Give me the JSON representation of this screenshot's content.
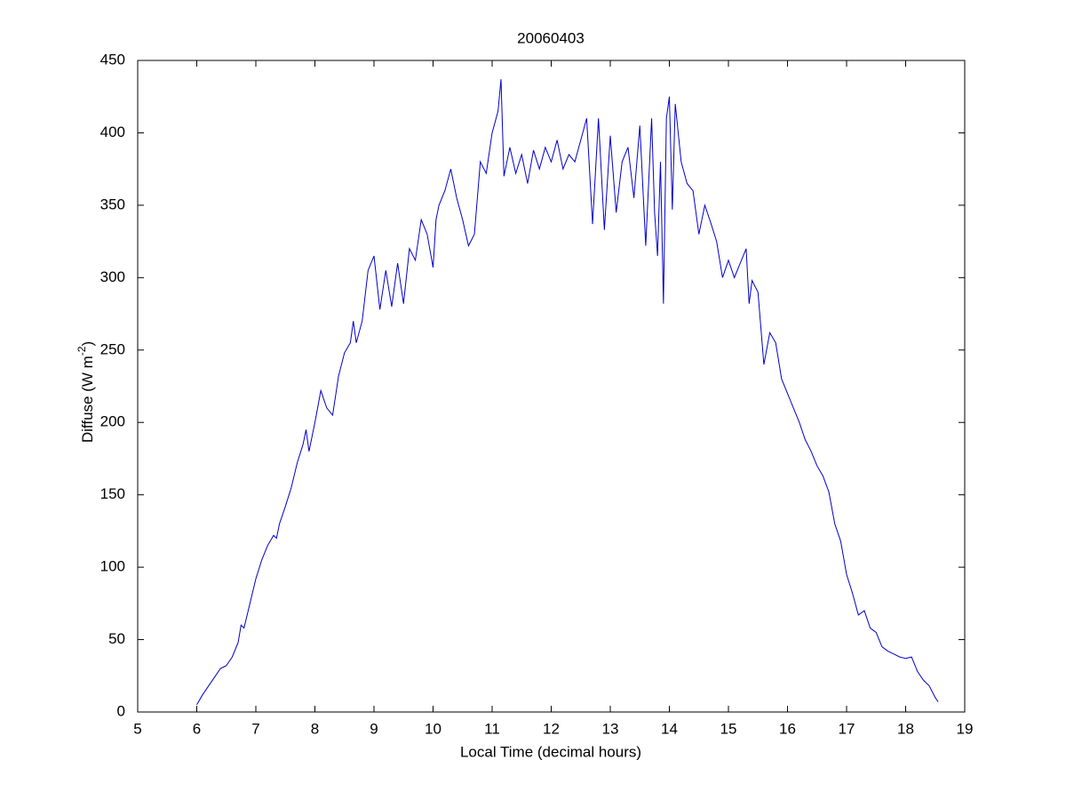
{
  "chart_data": {
    "type": "line",
    "title": "20060403",
    "xlabel": "Local Time (decimal hours)",
    "ylabel": [
      "Diffuse (W m",
      "-2",
      ")"
    ],
    "xlim": [
      5,
      19
    ],
    "xticks": [
      5,
      6,
      7,
      8,
      9,
      10,
      11,
      12,
      13,
      14,
      15,
      16,
      17,
      18,
      19
    ],
    "ylim": [
      0,
      450
    ],
    "yticks": [
      0,
      50,
      100,
      150,
      200,
      250,
      300,
      350,
      400,
      450
    ],
    "box": true,
    "series": [
      {
        "color": "#0000cc",
        "x": [
          6.0,
          6.1,
          6.2,
          6.3,
          6.4,
          6.5,
          6.6,
          6.7,
          6.75,
          6.8,
          6.9,
          7.0,
          7.1,
          7.2,
          7.3,
          7.35,
          7.4,
          7.5,
          7.6,
          7.7,
          7.8,
          7.85,
          7.9,
          8.0,
          8.1,
          8.2,
          8.3,
          8.4,
          8.5,
          8.6,
          8.65,
          8.7,
          8.8,
          8.9,
          9.0,
          9.1,
          9.2,
          9.3,
          9.4,
          9.5,
          9.6,
          9.7,
          9.8,
          9.9,
          10.0,
          10.05,
          10.1,
          10.2,
          10.3,
          10.4,
          10.5,
          10.6,
          10.7,
          10.8,
          10.9,
          11.0,
          11.1,
          11.15,
          11.2,
          11.3,
          11.4,
          11.5,
          11.6,
          11.7,
          11.8,
          11.9,
          12.0,
          12.1,
          12.2,
          12.3,
          12.4,
          12.5,
          12.6,
          12.7,
          12.8,
          12.9,
          13.0,
          13.1,
          13.2,
          13.3,
          13.4,
          13.5,
          13.6,
          13.7,
          13.75,
          13.8,
          13.85,
          13.9,
          13.95,
          14.0,
          14.05,
          14.1,
          14.2,
          14.3,
          14.4,
          14.5,
          14.6,
          14.7,
          14.8,
          14.9,
          15.0,
          15.1,
          15.2,
          15.3,
          15.35,
          15.4,
          15.5,
          15.6,
          15.7,
          15.8,
          15.9,
          16.0,
          16.1,
          16.2,
          16.3,
          16.4,
          16.5,
          16.6,
          16.7,
          16.8,
          16.9,
          17.0,
          17.1,
          17.2,
          17.3,
          17.4,
          17.5,
          17.6,
          17.7,
          17.8,
          17.9,
          18.0,
          18.1,
          18.2,
          18.3,
          18.4,
          18.5,
          18.55
        ],
        "values": [
          5,
          12,
          18,
          24,
          30,
          32,
          38,
          48,
          60,
          58,
          75,
          92,
          105,
          115,
          122,
          120,
          130,
          142,
          155,
          172,
          185,
          195,
          180,
          200,
          222,
          210,
          205,
          232,
          248,
          255,
          270,
          255,
          270,
          305,
          315,
          278,
          305,
          280,
          310,
          282,
          320,
          312,
          340,
          330,
          307,
          340,
          350,
          360,
          375,
          355,
          340,
          322,
          330,
          380,
          372,
          400,
          415,
          437,
          370,
          390,
          372,
          385,
          365,
          388,
          375,
          390,
          380,
          395,
          375,
          385,
          380,
          395,
          410,
          337,
          410,
          333,
          398,
          345,
          380,
          390,
          355,
          405,
          322,
          410,
          345,
          315,
          380,
          282,
          410,
          425,
          347,
          420,
          380,
          365,
          360,
          330,
          350,
          338,
          325,
          300,
          312,
          300,
          310,
          320,
          282,
          298,
          290,
          240,
          262,
          255,
          230,
          220,
          210,
          200,
          188,
          180,
          170,
          163,
          152,
          130,
          118,
          95,
          82,
          67,
          70,
          58,
          55,
          45,
          42,
          40,
          38,
          37,
          38,
          28,
          22,
          18,
          10,
          7
        ]
      }
    ]
  }
}
